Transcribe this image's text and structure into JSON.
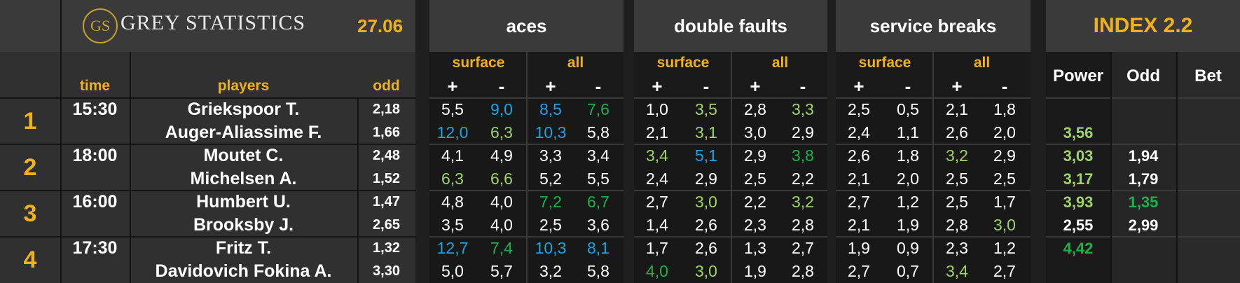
{
  "logo": {
    "mark": "GS",
    "name": "GREY STATISTICS"
  },
  "date": "27.06",
  "sections": {
    "aces": "aces",
    "double_faults": "double faults",
    "service_breaks": "service breaks"
  },
  "index_title": "INDEX 2.2",
  "sub": {
    "surface": "surface",
    "all": "all",
    "plus": "+",
    "minus": "-"
  },
  "columns": {
    "time": "time",
    "players": "players",
    "odd": "odd",
    "power": "Power",
    "odd2": "Odd",
    "bet": "Bet"
  },
  "colors": {
    "gold": "#f0b21a",
    "blue": "#1ba3e3",
    "light_green": "#9fd36a",
    "green": "#1eb04a",
    "white": "#ffffff"
  },
  "matches": [
    {
      "num": "1",
      "time": "15:30",
      "players": [
        {
          "name": "Griekspoor T.",
          "odd": "2,18",
          "stats": [
            [
              "5,5",
              "white"
            ],
            [
              "9,0",
              "blue"
            ],
            [
              "8,5",
              "blue"
            ],
            [
              "7,6",
              "green"
            ],
            [
              "1,0",
              "white"
            ],
            [
              "3,5",
              "light_green"
            ],
            [
              "2,8",
              "white"
            ],
            [
              "3,3",
              "light_green"
            ],
            [
              "2,5",
              "white"
            ],
            [
              "0,5",
              "white"
            ],
            [
              "2,1",
              "white"
            ],
            [
              "1,8",
              "white"
            ]
          ],
          "power": [
            "",
            ""
          ],
          "odd2": [
            "",
            ""
          ]
        },
        {
          "name": "Auger-Aliassime F.",
          "odd": "1,66",
          "stats": [
            [
              "12,0",
              "blue"
            ],
            [
              "6,3",
              "light_green"
            ],
            [
              "10,3",
              "blue"
            ],
            [
              "5,8",
              "white"
            ],
            [
              "2,1",
              "white"
            ],
            [
              "3,1",
              "light_green"
            ],
            [
              "3,0",
              "white"
            ],
            [
              "2,9",
              "white"
            ],
            [
              "2,4",
              "white"
            ],
            [
              "1,1",
              "white"
            ],
            [
              "2,6",
              "white"
            ],
            [
              "2,0",
              "white"
            ]
          ],
          "power": [
            "3,56",
            "light_green"
          ],
          "odd2": [
            "",
            ""
          ]
        }
      ]
    },
    {
      "num": "2",
      "time": "18:00",
      "players": [
        {
          "name": "Moutet C.",
          "odd": "2,48",
          "stats": [
            [
              "4,1",
              "white"
            ],
            [
              "4,9",
              "white"
            ],
            [
              "3,3",
              "white"
            ],
            [
              "3,4",
              "white"
            ],
            [
              "3,4",
              "light_green"
            ],
            [
              "5,1",
              "blue"
            ],
            [
              "2,9",
              "white"
            ],
            [
              "3,8",
              "green"
            ],
            [
              "2,6",
              "white"
            ],
            [
              "1,8",
              "white"
            ],
            [
              "3,2",
              "light_green"
            ],
            [
              "2,9",
              "white"
            ]
          ],
          "power": [
            "3,03",
            "light_green"
          ],
          "odd2": [
            "1,94",
            "white"
          ]
        },
        {
          "name": "Michelsen A.",
          "odd": "1,52",
          "stats": [
            [
              "6,3",
              "light_green"
            ],
            [
              "6,6",
              "light_green"
            ],
            [
              "5,2",
              "white"
            ],
            [
              "5,5",
              "white"
            ],
            [
              "2,4",
              "white"
            ],
            [
              "2,9",
              "white"
            ],
            [
              "2,5",
              "white"
            ],
            [
              "2,2",
              "white"
            ],
            [
              "2,1",
              "white"
            ],
            [
              "2,0",
              "white"
            ],
            [
              "2,5",
              "white"
            ],
            [
              "2,5",
              "white"
            ]
          ],
          "power": [
            "3,17",
            "light_green"
          ],
          "odd2": [
            "1,79",
            "white"
          ]
        }
      ]
    },
    {
      "num": "3",
      "time": "16:00",
      "players": [
        {
          "name": "Humbert U.",
          "odd": "1,47",
          "stats": [
            [
              "4,8",
              "white"
            ],
            [
              "4,0",
              "white"
            ],
            [
              "7,2",
              "green"
            ],
            [
              "6,7",
              "green"
            ],
            [
              "2,7",
              "white"
            ],
            [
              "3,0",
              "light_green"
            ],
            [
              "2,2",
              "white"
            ],
            [
              "3,2",
              "light_green"
            ],
            [
              "2,7",
              "white"
            ],
            [
              "1,2",
              "white"
            ],
            [
              "2,5",
              "white"
            ],
            [
              "1,7",
              "white"
            ]
          ],
          "power": [
            "3,93",
            "light_green"
          ],
          "odd2": [
            "1,35",
            "green"
          ]
        },
        {
          "name": "Brooksby J.",
          "odd": "2,65",
          "stats": [
            [
              "3,5",
              "white"
            ],
            [
              "4,0",
              "white"
            ],
            [
              "2,5",
              "white"
            ],
            [
              "3,6",
              "white"
            ],
            [
              "1,4",
              "white"
            ],
            [
              "2,6",
              "white"
            ],
            [
              "2,3",
              "white"
            ],
            [
              "2,8",
              "white"
            ],
            [
              "2,1",
              "white"
            ],
            [
              "1,9",
              "white"
            ],
            [
              "2,8",
              "white"
            ],
            [
              "3,0",
              "light_green"
            ]
          ],
          "power": [
            "2,55",
            "white"
          ],
          "odd2": [
            "2,99",
            "white"
          ]
        }
      ]
    },
    {
      "num": "4",
      "time": "17:30",
      "players": [
        {
          "name": "Fritz T.",
          "odd": "1,32",
          "stats": [
            [
              "12,7",
              "blue"
            ],
            [
              "7,4",
              "green"
            ],
            [
              "10,3",
              "blue"
            ],
            [
              "8,1",
              "blue"
            ],
            [
              "1,7",
              "white"
            ],
            [
              "2,6",
              "white"
            ],
            [
              "1,3",
              "white"
            ],
            [
              "2,7",
              "white"
            ],
            [
              "1,9",
              "white"
            ],
            [
              "0,9",
              "white"
            ],
            [
              "2,3",
              "white"
            ],
            [
              "1,2",
              "white"
            ]
          ],
          "power": [
            "4,42",
            "green"
          ],
          "odd2": [
            "",
            ""
          ]
        },
        {
          "name": "Davidovich Fokina A.",
          "odd": "3,30",
          "stats": [
            [
              "5,0",
              "white"
            ],
            [
              "5,7",
              "white"
            ],
            [
              "3,2",
              "white"
            ],
            [
              "5,8",
              "white"
            ],
            [
              "4,0",
              "green"
            ],
            [
              "3,0",
              "light_green"
            ],
            [
              "1,9",
              "white"
            ],
            [
              "2,8",
              "white"
            ],
            [
              "2,7",
              "white"
            ],
            [
              "0,7",
              "white"
            ],
            [
              "3,4",
              "light_green"
            ],
            [
              "2,7",
              "white"
            ]
          ],
          "power": [
            "",
            ""
          ],
          "odd2": [
            "",
            ""
          ]
        }
      ]
    }
  ]
}
